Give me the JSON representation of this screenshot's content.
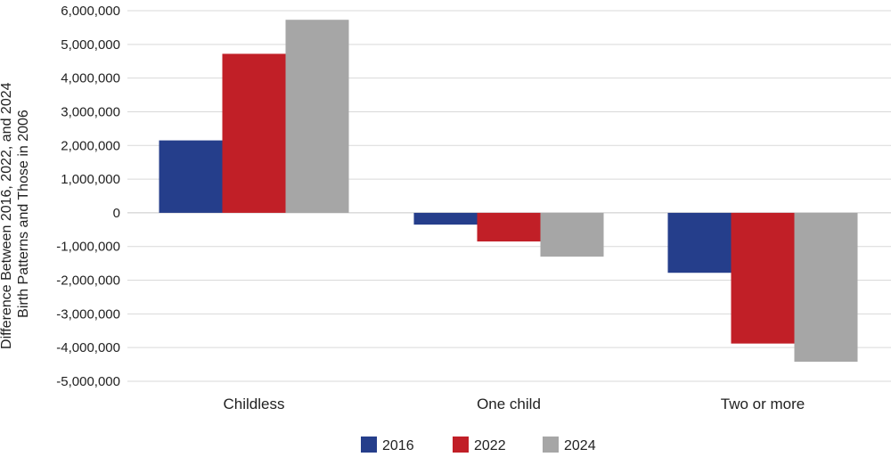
{
  "chart_data": {
    "type": "bar",
    "ylabel_line1": "Difference Between 2016, 2022, and 2024",
    "ylabel_line2": "Birth Patterns and Those in 2006",
    "categories": [
      "Childless",
      "One child",
      "Two or more"
    ],
    "series": [
      {
        "name": "2016",
        "color": "#253e8b",
        "values": [
          2150000,
          -350000,
          -1780000
        ]
      },
      {
        "name": "2022",
        "color": "#c11f27",
        "values": [
          4720000,
          -850000,
          -3880000
        ]
      },
      {
        "name": "2024",
        "color": "#a6a6a6",
        "values": [
          5730000,
          -1300000,
          -4420000
        ]
      }
    ],
    "ylim": [
      -5000000,
      6000000
    ],
    "yticks": [
      6000000,
      5000000,
      4000000,
      3000000,
      2000000,
      1000000,
      0,
      -1000000,
      -2000000,
      -3000000,
      -4000000,
      -5000000
    ],
    "ytick_labels": [
      "6,000,000",
      "5,000,000",
      "4,000,000",
      "3,000,000",
      "2,000,000",
      "1,000,000",
      "0",
      "-1,000,000",
      "-2,000,000",
      "-3,000,000",
      "-4,000,000",
      "-5,000,000"
    ],
    "grid": true,
    "legend_position": "bottom-center"
  }
}
